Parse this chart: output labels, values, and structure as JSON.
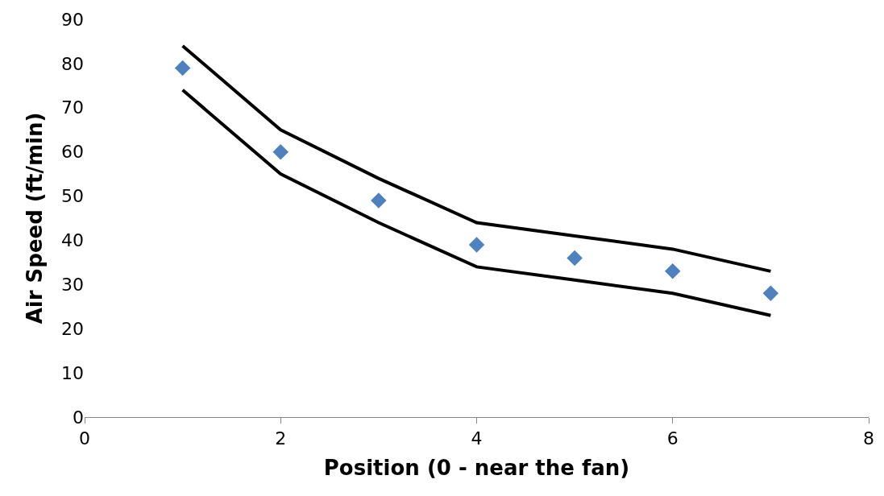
{
  "chart_data": {
    "type": "scatter",
    "xlabel": "Position (0 - near the fan)",
    "ylabel": "Air Speed (ft/min)",
    "x": [
      1,
      2,
      3,
      4,
      5,
      6,
      7
    ],
    "series": [
      {
        "color": "#4f81bd",
        "marker": "diamond",
        "values": [
          79,
          60,
          49,
          39,
          36,
          33,
          28
        ]
      },
      {
        "type": "line",
        "color": "#000000",
        "marker": "none",
        "values": [
          84,
          65,
          54,
          44,
          41,
          38,
          33
        ]
      },
      {
        "type": "line",
        "color": "#000000",
        "marker": "none",
        "values": [
          74,
          55,
          44,
          34,
          31,
          28,
          23
        ]
      }
    ],
    "xlim": [
      0,
      8
    ],
    "xticks": [
      0,
      2,
      4,
      6,
      8
    ],
    "ylim": [
      0,
      90
    ],
    "yticks": [
      0,
      10,
      20,
      30,
      40,
      50,
      60,
      70,
      80,
      90
    ],
    "legend": false
  }
}
